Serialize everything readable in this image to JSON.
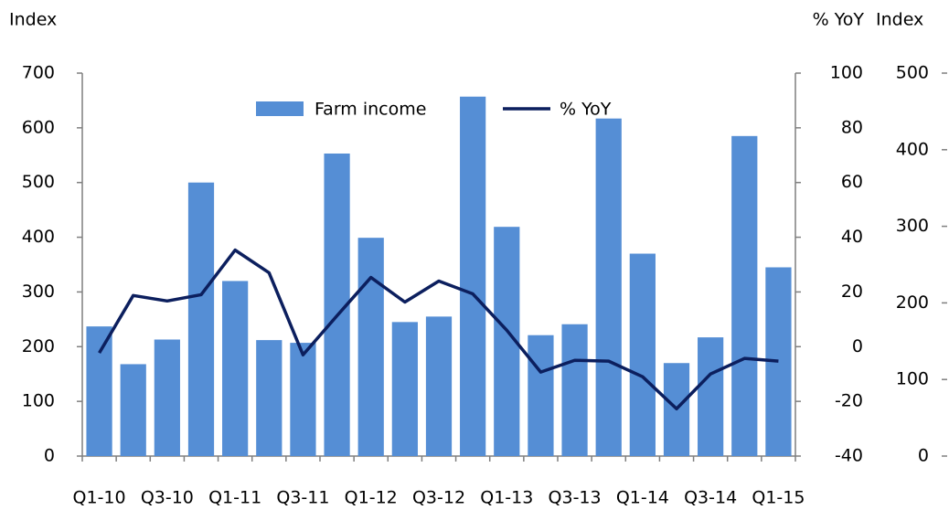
{
  "chart_data": [
    {
      "type": "bar_line",
      "y_axis_label": "Index",
      "y2_axis_label": "% YoY",
      "categories": [
        "Q1-10",
        null,
        "Q3-10",
        null,
        "Q1-11",
        null,
        "Q3-11",
        null,
        "Q1-12",
        null,
        "Q3-12",
        null,
        "Q1-13",
        null,
        "Q3-13",
        null,
        "Q1-14",
        null,
        "Q3-14",
        null,
        "Q1-15"
      ],
      "series": [
        {
          "name": "Farm income",
          "type": "bar",
          "color": "#558ed5",
          "axis": "y",
          "values": [
            237,
            168,
            213,
            500,
            320,
            212,
            207,
            553,
            399,
            245,
            255,
            657,
            419,
            221,
            241,
            617,
            370,
            170,
            217,
            585,
            345
          ]
        },
        {
          "name": "% YoY",
          "type": "line",
          "color": "#0c1f5e",
          "axis": "y2",
          "values": [
            -2.3,
            18.7,
            16.7,
            19,
            35.3,
            27,
            -3,
            11.3,
            25.3,
            16.3,
            24,
            19.3,
            6,
            -9.3,
            -5,
            -5.3,
            -11,
            -22.7,
            -10,
            -4.3,
            -5.3
          ]
        }
      ],
      "ylim": [
        0,
        700
      ],
      "yticks": [
        0,
        100,
        200,
        300,
        400,
        500,
        600,
        700
      ],
      "y2lim": [
        -40,
        100
      ],
      "y2ticks": [
        -40,
        -20,
        0,
        20,
        40,
        60,
        80,
        100
      ],
      "legend": "top"
    },
    {
      "type": "bar",
      "y_axis_label": "Index",
      "ylim": [
        0,
        500
      ],
      "yticks": [
        0,
        100,
        200,
        300,
        400,
        500
      ]
    }
  ]
}
